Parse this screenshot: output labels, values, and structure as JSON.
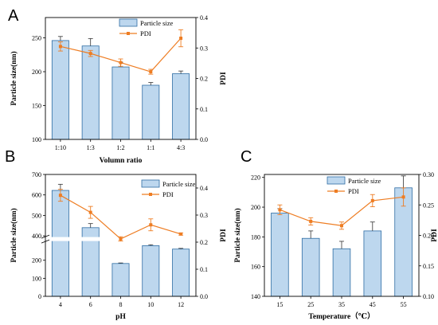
{
  "colors": {
    "bar_fill": "#bdd7ee",
    "bar_stroke": "#2e6da4",
    "line": "#ee7d23",
    "error": "#333333"
  },
  "chart_data": [
    {
      "panel": "A",
      "type": "bar",
      "xlabel": "Volumn ratio",
      "ylabel": "Particle size(nm)",
      "y2label": "PDI",
      "categories": [
        "1:10",
        "1:3",
        "1:2",
        "1:1",
        "4:3"
      ],
      "ylim": [
        100,
        280
      ],
      "yticks": [
        100,
        150,
        200,
        250
      ],
      "y2lim": [
        0,
        0.4
      ],
      "y2ticks": [
        0.0,
        0.1,
        0.2,
        0.3,
        0.4
      ],
      "series": [
        {
          "name": "Particle size",
          "axis": "left",
          "values": [
            246,
            238,
            207,
            180,
            197
          ],
          "errors": [
            6,
            11,
            7,
            4,
            4
          ]
        },
        {
          "name": "PDI",
          "axis": "right",
          "values": [
            0.305,
            0.282,
            0.252,
            0.222,
            0.332
          ],
          "errors": [
            0.015,
            0.01,
            0.012,
            0.008,
            0.028
          ]
        }
      ],
      "legend": "top-right"
    },
    {
      "panel": "B",
      "type": "bar",
      "xlabel": "pH",
      "ylabel": "Particle size(nm)",
      "y2label": "PDI",
      "categories": [
        "4",
        "6",
        "8",
        "10",
        "12"
      ],
      "ylim_lower": [
        0,
        300
      ],
      "ylim_upper": [
        400,
        700
      ],
      "yticks": [
        0,
        100,
        200,
        400,
        500,
        600,
        700
      ],
      "broken_axis": true,
      "y2lim": [
        0,
        0.45
      ],
      "y2ticks": [
        0.0,
        0.1,
        0.2,
        0.3,
        0.4
      ],
      "series": [
        {
          "name": "Particle size",
          "axis": "left",
          "values": [
            622,
            440,
            182,
            281,
            262
          ],
          "errors": [
            30,
            20,
            3,
            5,
            4
          ]
        },
        {
          "name": "PDI",
          "axis": "right",
          "values": [
            0.373,
            0.31,
            0.212,
            0.264,
            0.23
          ],
          "errors": [
            0.022,
            0.022,
            0.008,
            0.022,
            0.004
          ]
        }
      ],
      "legend": "top-right"
    },
    {
      "panel": "C",
      "type": "bar",
      "xlabel": "Temperature（℃）",
      "ylabel": "Particle size(nm)",
      "y2label": "PDI",
      "categories": [
        "15",
        "25",
        "35",
        "45",
        "55"
      ],
      "ylim": [
        140,
        222
      ],
      "yticks": [
        140,
        160,
        180,
        200,
        220
      ],
      "y2lim": [
        0.1,
        0.3
      ],
      "y2ticks": [
        0.1,
        0.15,
        0.2,
        0.25,
        0.3
      ],
      "series": [
        {
          "name": "Particle size",
          "axis": "left",
          "values": [
            196,
            179,
            172,
            184,
            213
          ],
          "errors": [
            3,
            5,
            5,
            6,
            8
          ]
        },
        {
          "name": "PDI",
          "axis": "right",
          "values": [
            0.242,
            0.223,
            0.216,
            0.257,
            0.263
          ],
          "errors": [
            0.008,
            0.006,
            0.006,
            0.01,
            0.015
          ]
        }
      ],
      "legend": "top-left"
    }
  ]
}
